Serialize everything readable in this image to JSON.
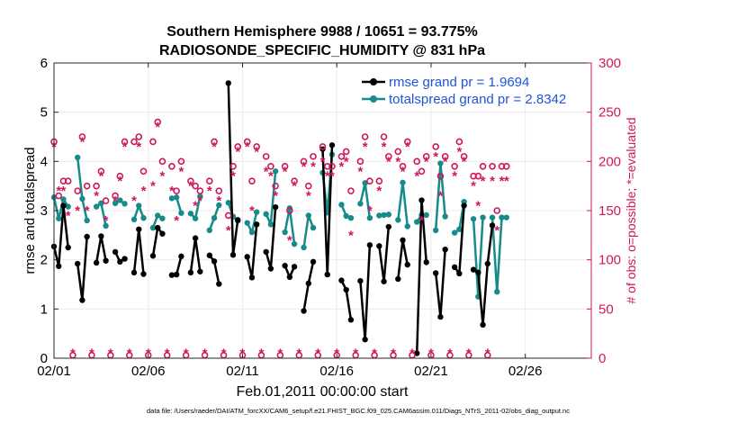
{
  "chart_data": {
    "type": "line",
    "title_line1": "Southern Hemisphere 9988 / 10651 = 93.775%",
    "title_line2": "RADIOSONDE_SPECIFIC_HUMIDITY @ 831 hPa",
    "ylabel": "rmse and totalspread",
    "y2label": "# of obs: o=possible; *=evaluated",
    "xlabel": "Feb.01,2011 00:00:00 start",
    "footnote": "data file: /Users/raeder/DAI/ATM_forcXX/CAM6_setup/f.e21.FHIST_BGC.f09_025.CAM6assim.011/Diags_NTrS_2011-02/obs_diag_output.nc",
    "x_tick_labels": [
      "02/01",
      "02/06",
      "02/11",
      "02/16",
      "02/21",
      "02/26"
    ],
    "x_ticks_day": [
      0,
      5,
      10,
      15,
      20,
      25
    ],
    "xlim": [
      0,
      28.5
    ],
    "y_ticks": [
      0,
      1,
      2,
      3,
      4,
      5,
      6
    ],
    "ylim": [
      0,
      6
    ],
    "y2_ticks": [
      0,
      50,
      100,
      150,
      200,
      250,
      300
    ],
    "y2lim": [
      0,
      300
    ],
    "x_step_days": 0.25,
    "colors": {
      "rmse": "#000000",
      "spread": "#178a8a",
      "obs": "#d0165b",
      "legend_text": "#1f55d8"
    },
    "legend": [
      {
        "key": "rmse",
        "label": "rmse grand pr = 1.9694"
      },
      {
        "key": "spread",
        "label": "totalspread grand pr = 2.8342"
      }
    ],
    "series": [
      {
        "name": "rmse",
        "values": [
          2.27,
          1.87,
          3.1,
          2.25,
          null,
          1.92,
          1.18,
          2.47,
          null,
          1.94,
          2.48,
          1.98,
          null,
          2.16,
          1.96,
          2.02,
          null,
          1.74,
          2.62,
          1.71,
          null,
          2.08,
          2.65,
          2.53,
          null,
          1.69,
          1.7,
          2.07,
          null,
          1.74,
          2.44,
          1.76,
          null,
          2.09,
          1.97,
          1.51,
          null,
          5.59,
          2.1,
          2.81,
          null,
          2.06,
          1.64,
          2.72,
          null,
          2.16,
          1.82,
          3.07,
          null,
          1.88,
          1.65,
          1.86,
          null,
          0.96,
          1.52,
          1.96,
          null,
          4.25,
          1.7,
          4.33,
          null,
          1.58,
          1.39,
          0.78,
          null,
          1.57,
          0.38,
          2.3,
          null,
          2.28,
          1.56,
          2.67,
          null,
          1.61,
          2.4,
          1.9,
          null,
          0.1,
          3.21,
          1.95,
          null,
          1.73,
          0.84,
          2.21,
          null,
          1.85,
          1.72,
          3.1,
          null,
          1.8,
          1.74,
          0.68,
          1.92,
          2.7
        ]
      },
      {
        "name": "totalspread",
        "values": [
          3.27,
          2.84,
          3.23,
          3.08,
          null,
          4.08,
          3.24,
          2.8,
          null,
          3.08,
          3.15,
          2.69,
          null,
          3.15,
          3.21,
          3.14,
          null,
          2.82,
          3.1,
          2.85,
          null,
          2.65,
          2.9,
          2.84,
          null,
          3.25,
          3.27,
          2.95,
          null,
          2.94,
          2.84,
          3.29,
          null,
          2.6,
          2.85,
          3.11,
          null,
          3.16,
          2.88,
          2.79,
          null,
          2.75,
          2.56,
          2.97,
          null,
          2.93,
          2.72,
          3.8,
          null,
          2.56,
          3.05,
          2.32,
          null,
          2.25,
          2.9,
          2.65,
          null,
          3.77,
          2.96,
          4.14,
          null,
          3.12,
          2.89,
          2.85,
          null,
          3.14,
          3.56,
          2.85,
          null,
          2.9,
          2.91,
          2.92,
          null,
          2.81,
          3.57,
          2.68,
          null,
          2.77,
          2.91,
          2.91,
          null,
          2.6,
          3.96,
          2.88,
          null,
          2.55,
          2.62,
          3.18,
          null,
          2.83,
          1.25,
          2.86,
          null,
          2.86,
          1.35,
          2.86,
          2.86
        ]
      },
      {
        "name": "obs_possible",
        "values": [
          220,
          165,
          180,
          180,
          3,
          170,
          225,
          175,
          3,
          175,
          190,
          160,
          3,
          165,
          185,
          220,
          3,
          220,
          225,
          190,
          3,
          220,
          240,
          200,
          3,
          195,
          170,
          200,
          3,
          180,
          175,
          170,
          3,
          180,
          220,
          170,
          3,
          145,
          195,
          215,
          3,
          220,
          180,
          215,
          3,
          205,
          195,
          175,
          3,
          195,
          150,
          180,
          3,
          200,
          175,
          205,
          3,
          215,
          195,
          195,
          3,
          205,
          210,
          170,
          3,
          200,
          225,
          180,
          3,
          180,
          225,
          205,
          3,
          210,
          195,
          220,
          3,
          200,
          190,
          205,
          3,
          215,
          185,
          205,
          3,
          195,
          220,
          205,
          3,
          185,
          185,
          195,
          3,
          195,
          150,
          195,
          195
        ]
      },
      {
        "name": "obs_evaluated",
        "values": [
          215,
          170,
          170,
          145,
          5,
          150,
          220,
          150,
          5,
          165,
          185,
          140,
          5,
          160,
          180,
          215,
          5,
          160,
          215,
          170,
          5,
          175,
          235,
          185,
          5,
          170,
          140,
          190,
          5,
          175,
          155,
          160,
          5,
          170,
          215,
          160,
          5,
          130,
          185,
          210,
          5,
          215,
          150,
          210,
          5,
          190,
          185,
          165,
          5,
          190,
          120,
          175,
          5,
          195,
          165,
          195,
          5,
          200,
          185,
          185,
          5,
          195,
          200,
          125,
          5,
          190,
          215,
          150,
          5,
          170,
          215,
          200,
          5,
          200,
          190,
          215,
          5,
          185,
          140,
          200,
          5,
          205,
          165,
          200,
          5,
          185,
          210,
          200,
          5,
          175,
          155,
          180,
          5,
          180,
          130,
          180,
          180
        ]
      }
    ]
  }
}
